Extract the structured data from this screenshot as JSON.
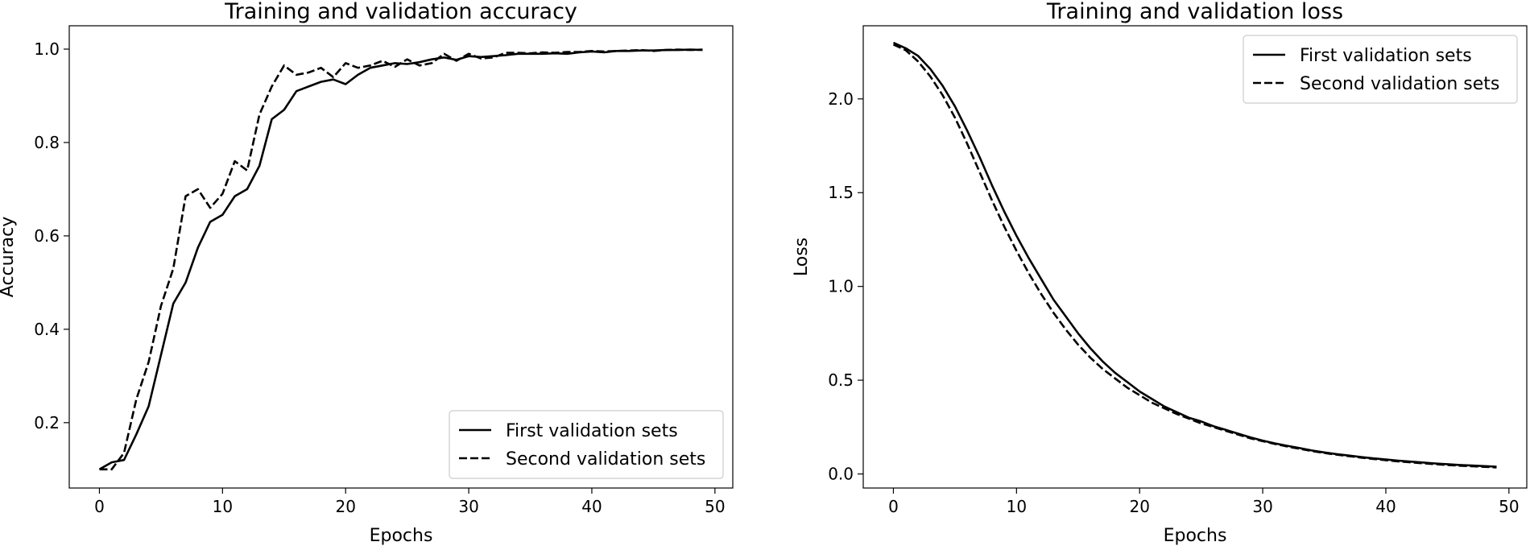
{
  "chart_data": [
    {
      "type": "line",
      "title": "Training and validation accuracy",
      "xlabel": "Epochs",
      "ylabel": "Accuracy",
      "xlim": [
        -2.45,
        51.45
      ],
      "ylim": [
        0.06,
        1.05
      ],
      "xticks": [
        0,
        10,
        20,
        30,
        40,
        50
      ],
      "xtick_labels": [
        "0",
        "10",
        "20",
        "30",
        "40",
        "50"
      ],
      "yticks": [
        0.2,
        0.4,
        0.6,
        0.8,
        1.0
      ],
      "ytick_labels": [
        "0.2",
        "0.4",
        "0.6",
        "0.8",
        "1.0"
      ],
      "grid": false,
      "legend_position": "lower-right",
      "x": [
        0,
        1,
        2,
        3,
        4,
        5,
        6,
        7,
        8,
        9,
        10,
        11,
        12,
        13,
        14,
        15,
        16,
        17,
        18,
        19,
        20,
        21,
        22,
        23,
        24,
        25,
        26,
        27,
        28,
        29,
        30,
        31,
        32,
        33,
        34,
        35,
        36,
        37,
        38,
        39,
        40,
        41,
        42,
        43,
        44,
        45,
        46,
        47,
        48,
        49
      ],
      "series": [
        {
          "name": "First validation sets",
          "style": "solid",
          "values": [
            0.1,
            0.115,
            0.12,
            0.175,
            0.235,
            0.345,
            0.455,
            0.5,
            0.575,
            0.63,
            0.645,
            0.685,
            0.7,
            0.75,
            0.85,
            0.87,
            0.91,
            0.92,
            0.93,
            0.935,
            0.925,
            0.945,
            0.96,
            0.965,
            0.97,
            0.968,
            0.972,
            0.978,
            0.982,
            0.977,
            0.985,
            0.983,
            0.985,
            0.987,
            0.99,
            0.99,
            0.99,
            0.991,
            0.99,
            0.993,
            0.995,
            0.993,
            0.996,
            0.996,
            0.997,
            0.997,
            0.998,
            0.998,
            0.999,
            0.998
          ]
        },
        {
          "name": "Second validation sets",
          "style": "dashed",
          "values": [
            0.1,
            0.1,
            0.135,
            0.25,
            0.33,
            0.45,
            0.53,
            0.685,
            0.7,
            0.66,
            0.69,
            0.76,
            0.74,
            0.86,
            0.92,
            0.965,
            0.945,
            0.95,
            0.96,
            0.94,
            0.97,
            0.96,
            0.965,
            0.975,
            0.962,
            0.978,
            0.965,
            0.97,
            0.99,
            0.975,
            0.99,
            0.98,
            0.982,
            0.992,
            0.992,
            0.991,
            0.993,
            0.992,
            0.994,
            0.994,
            0.996,
            0.995,
            0.996,
            0.997,
            0.998,
            0.996,
            0.998,
            0.999,
            0.998,
            0.999
          ]
        }
      ]
    },
    {
      "type": "line",
      "title": "Training and validation loss",
      "xlabel": "Epochs",
      "ylabel": "Loss",
      "xlim": [
        -2.45,
        51.45
      ],
      "ylim": [
        -0.075,
        2.39
      ],
      "xticks": [
        0,
        10,
        20,
        30,
        40,
        50
      ],
      "xtick_labels": [
        "0",
        "10",
        "20",
        "30",
        "40",
        "50"
      ],
      "yticks": [
        0.0,
        0.5,
        1.0,
        1.5,
        2.0
      ],
      "ytick_labels": [
        "0.0",
        "0.5",
        "1.0",
        "1.5",
        "2.0"
      ],
      "grid": false,
      "legend_position": "upper-right",
      "x": [
        0,
        1,
        2,
        3,
        4,
        5,
        6,
        7,
        8,
        9,
        10,
        11,
        12,
        13,
        14,
        15,
        16,
        17,
        18,
        19,
        20,
        21,
        22,
        23,
        24,
        25,
        26,
        27,
        28,
        29,
        30,
        31,
        32,
        33,
        34,
        35,
        36,
        37,
        38,
        39,
        40,
        41,
        42,
        43,
        44,
        45,
        46,
        47,
        48,
        49
      ],
      "series": [
        {
          "name": "First validation sets",
          "style": "solid",
          "values": [
            2.3,
            2.27,
            2.23,
            2.16,
            2.07,
            1.96,
            1.83,
            1.69,
            1.54,
            1.4,
            1.27,
            1.15,
            1.04,
            0.93,
            0.84,
            0.75,
            0.67,
            0.6,
            0.54,
            0.49,
            0.44,
            0.4,
            0.36,
            0.33,
            0.3,
            0.28,
            0.255,
            0.235,
            0.215,
            0.195,
            0.178,
            0.163,
            0.15,
            0.138,
            0.125,
            0.115,
            0.106,
            0.098,
            0.09,
            0.083,
            0.077,
            0.071,
            0.066,
            0.061,
            0.056,
            0.052,
            0.048,
            0.045,
            0.042,
            0.039
          ]
        },
        {
          "name": "Second validation sets",
          "style": "dashed",
          "values": [
            2.29,
            2.26,
            2.2,
            2.12,
            2.02,
            1.9,
            1.76,
            1.61,
            1.46,
            1.32,
            1.19,
            1.07,
            0.96,
            0.86,
            0.77,
            0.69,
            0.62,
            0.56,
            0.51,
            0.46,
            0.42,
            0.38,
            0.35,
            0.32,
            0.295,
            0.27,
            0.25,
            0.23,
            0.21,
            0.19,
            0.175,
            0.16,
            0.146,
            0.134,
            0.122,
            0.112,
            0.103,
            0.095,
            0.087,
            0.08,
            0.073,
            0.067,
            0.062,
            0.057,
            0.052,
            0.048,
            0.044,
            0.041,
            0.038,
            0.035
          ]
        }
      ]
    }
  ]
}
